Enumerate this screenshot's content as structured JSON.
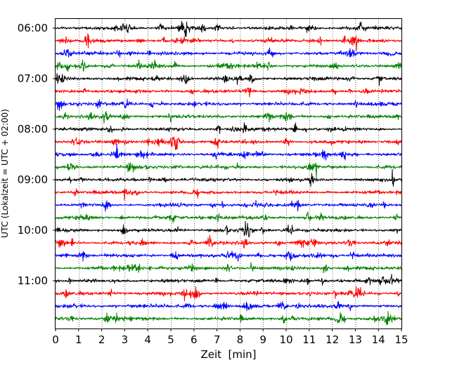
{
  "chart_data": {
    "type": "line",
    "title": "",
    "xlabel": "Zeit  [min]",
    "ylabel": "UTC (Lokalzeit = UTC + 02:00)",
    "xlim": [
      0,
      15
    ],
    "x_ticks": [
      0,
      1,
      2,
      3,
      4,
      5,
      6,
      7,
      8,
      9,
      10,
      11,
      12,
      13,
      14,
      15
    ],
    "y_tick_labels": [
      "06:00",
      "07:00",
      "08:00",
      "09:00",
      "10:00",
      "11:00"
    ],
    "trace_start_times": [
      "06:00",
      "06:15",
      "06:30",
      "06:45",
      "07:00",
      "07:15",
      "07:30",
      "07:45",
      "08:00",
      "08:15",
      "08:30",
      "08:45",
      "09:00",
      "09:15",
      "09:30",
      "09:45",
      "10:00",
      "10:15",
      "10:30",
      "10:45",
      "11:00",
      "11:15",
      "11:30",
      "11:45"
    ],
    "trace_duration_min": 15,
    "trace_colors": [
      "#000000",
      "#ff0000",
      "#0000ff",
      "#008000"
    ],
    "x_grid": "dotted",
    "legend": "none"
  }
}
